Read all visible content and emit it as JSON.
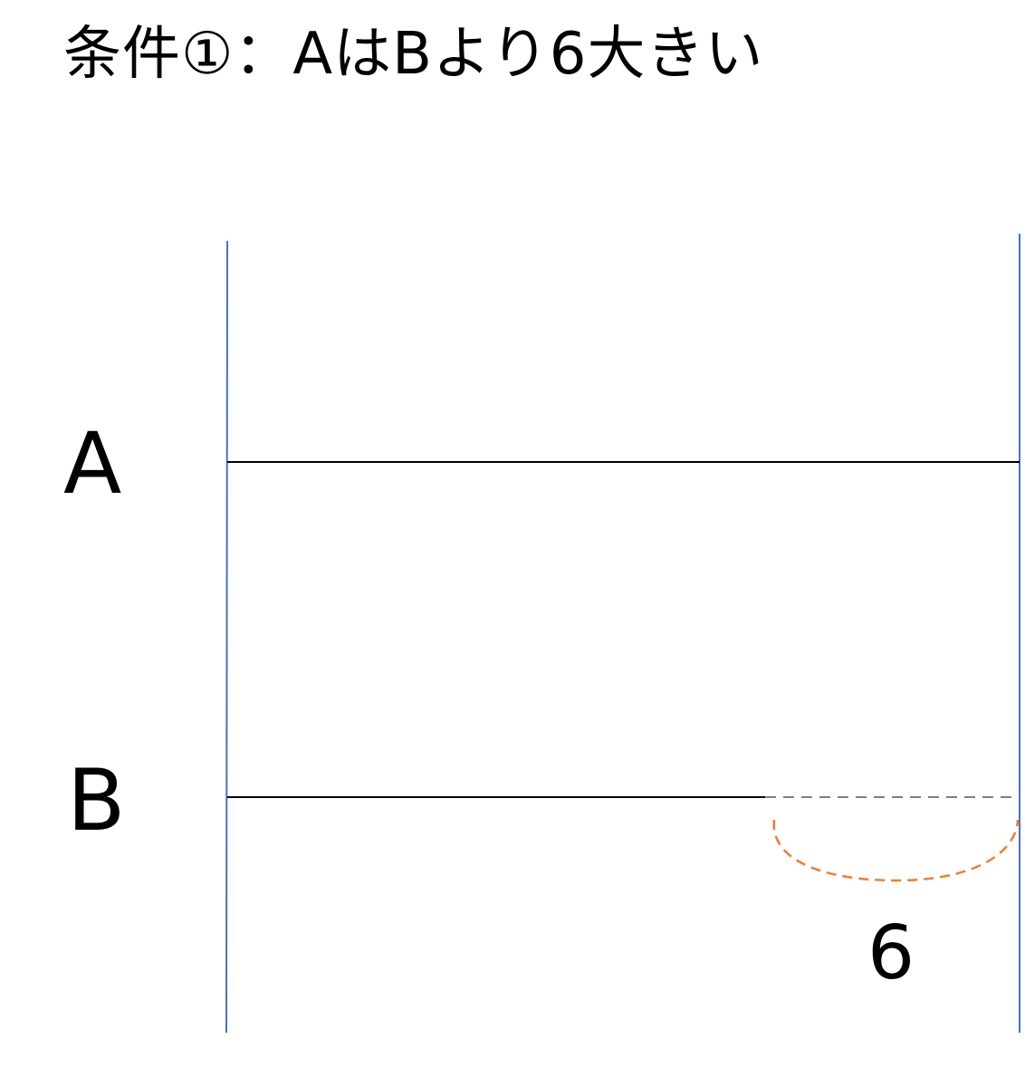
{
  "title": "条件①：AはBより6大きい",
  "bars": {
    "a_label": "A",
    "b_label": "B"
  },
  "difference": {
    "label": "6"
  },
  "colors": {
    "boundary": "#4472C4",
    "bar": "#000000",
    "dashed_extension": "#7F7F7F",
    "brace": "#ED7D31"
  }
}
